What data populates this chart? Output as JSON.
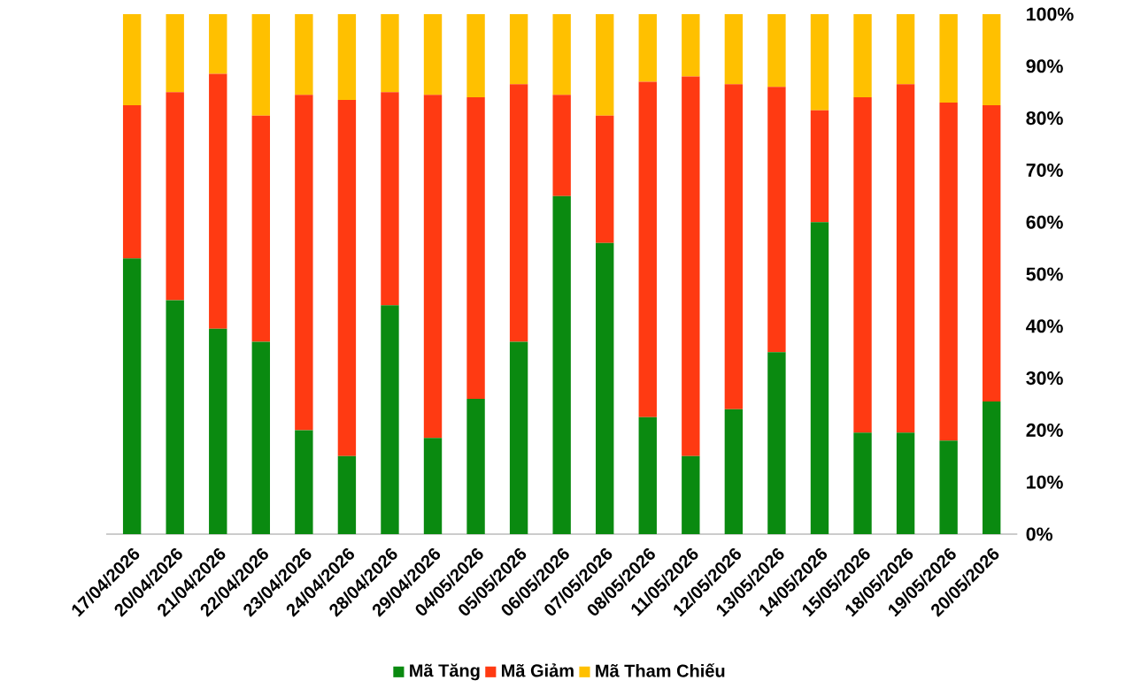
{
  "chart_data": {
    "type": "bar",
    "stacked": true,
    "legend": "bottom",
    "grid": false,
    "categories": [
      "17/04/2026",
      "20/04/2026",
      "21/04/2026",
      "22/04/2026",
      "23/04/2026",
      "24/04/2026",
      "28/04/2026",
      "29/04/2026",
      "04/05/2026",
      "05/05/2026",
      "06/05/2026",
      "07/05/2026",
      "08/05/2026",
      "11/05/2026",
      "12/05/2026",
      "13/05/2026",
      "14/05/2026",
      "15/05/2026",
      "18/05/2026",
      "19/05/2026",
      "20/05/2026"
    ],
    "ylim": [
      0,
      100
    ],
    "yticks": [
      {
        "value": 0,
        "label": "0%"
      },
      {
        "value": 10,
        "label": "10%"
      },
      {
        "value": 20,
        "label": "20%"
      },
      {
        "value": 30,
        "label": "30%"
      },
      {
        "value": 40,
        "label": "40%"
      },
      {
        "value": 50,
        "label": "50%"
      },
      {
        "value": 60,
        "label": "60%"
      },
      {
        "value": 70,
        "label": "70%"
      },
      {
        "value": 80,
        "label": "80%"
      },
      {
        "value": 90,
        "label": "90%"
      },
      {
        "value": 100,
        "label": "100%"
      }
    ],
    "series": [
      {
        "name": "Mã Tăng",
        "color": "#0a8a10",
        "values": [
          53,
          45,
          39.5,
          37,
          20,
          15,
          44,
          18.5,
          26,
          37,
          65,
          56,
          22.5,
          15,
          24,
          35,
          60,
          19.5,
          19.5,
          18,
          25.5
        ]
      },
      {
        "name": "Mã Giảm",
        "color": "#ff3a12",
        "values": [
          29.5,
          40,
          49,
          43.5,
          64.5,
          68.5,
          41,
          66,
          58,
          49.5,
          19.5,
          24.5,
          64.5,
          73,
          62.5,
          51,
          21.5,
          64.5,
          67,
          65,
          57
        ]
      },
      {
        "name": "Mã Tham Chiếu",
        "color": "#ffc000",
        "values": [
          17.5,
          15,
          11.5,
          19.5,
          15.5,
          16.5,
          15,
          15.5,
          16,
          13.5,
          15.5,
          19.5,
          13,
          12,
          13.5,
          14,
          18.5,
          16,
          13.5,
          17,
          17.5
        ]
      }
    ]
  }
}
